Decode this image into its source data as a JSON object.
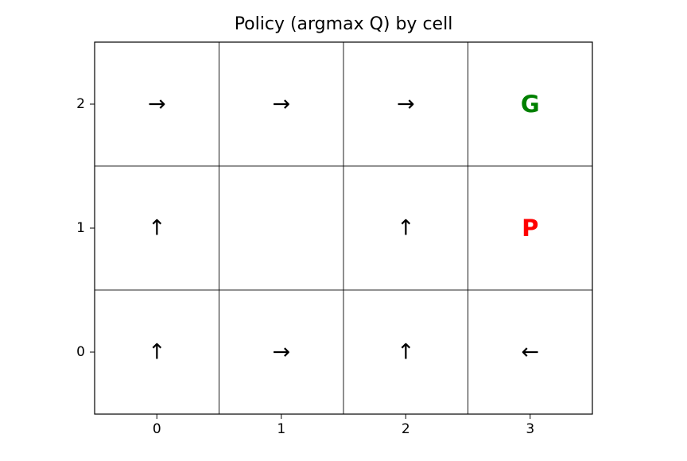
{
  "chart_data": {
    "type": "heatmap",
    "title": "Policy (argmax Q) by cell",
    "xlabel": "",
    "ylabel": "",
    "x_ticks": [
      "0",
      "1",
      "2",
      "3"
    ],
    "y_ticks": [
      "0",
      "1",
      "2"
    ],
    "xlim": [
      -0.5,
      3.5
    ],
    "ylim": [
      -0.5,
      2.5
    ],
    "grid": true,
    "cells": [
      {
        "x": 0,
        "y": 2,
        "label": "→",
        "color": "#000000",
        "bold": false
      },
      {
        "x": 1,
        "y": 2,
        "label": "→",
        "color": "#000000",
        "bold": false
      },
      {
        "x": 2,
        "y": 2,
        "label": "→",
        "color": "#000000",
        "bold": false
      },
      {
        "x": 3,
        "y": 2,
        "label": "G",
        "color": "#008000",
        "bold": true
      },
      {
        "x": 0,
        "y": 1,
        "label": "↑",
        "color": "#000000",
        "bold": false
      },
      {
        "x": 1,
        "y": 1,
        "label": "",
        "color": "#000000",
        "bold": false
      },
      {
        "x": 2,
        "y": 1,
        "label": "↑",
        "color": "#000000",
        "bold": false
      },
      {
        "x": 3,
        "y": 1,
        "label": "P",
        "color": "#ff0000",
        "bold": true
      },
      {
        "x": 0,
        "y": 0,
        "label": "↑",
        "color": "#000000",
        "bold": false
      },
      {
        "x": 1,
        "y": 0,
        "label": "→",
        "color": "#000000",
        "bold": false
      },
      {
        "x": 2,
        "y": 0,
        "label": "↑",
        "color": "#000000",
        "bold": false
      },
      {
        "x": 3,
        "y": 0,
        "label": "←",
        "color": "#000000",
        "bold": false
      }
    ]
  }
}
